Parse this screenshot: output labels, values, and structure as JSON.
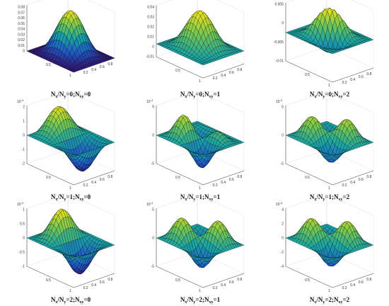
{
  "chart_data": [
    {
      "type": "surface",
      "mode": 0,
      "caption": {
        "pre": "N",
        "s1": "x",
        "mid": "/N",
        "s2": "y",
        "post": "=0;N",
        "s3": "xy",
        "tail": "=0"
      },
      "z_exponent": "",
      "zticks": [
        "0.08",
        "0.07",
        "0.06",
        "0.05",
        "0.04",
        "0.03",
        "0.02",
        "0.01",
        "0"
      ],
      "xticks": [
        "0.5",
        "1"
      ],
      "yticks": [
        "0.2",
        "0.4",
        "0.6",
        "0.8"
      ]
    },
    {
      "type": "surface",
      "mode": 1,
      "caption": {
        "pre": "N",
        "s1": "x",
        "mid": "/N",
        "s2": "y",
        "post": "=0;N",
        "s3": "xy",
        "tail": "=1"
      },
      "z_exponent": "",
      "zticks": [
        "0.04",
        "0.03",
        "0.02",
        "0.01",
        "0",
        "-0.01"
      ],
      "xticks": [
        "0.5",
        "1"
      ],
      "yticks": [
        "0.2",
        "0.4",
        "0.6",
        "0.8"
      ]
    },
    {
      "type": "surface",
      "mode": 2,
      "caption": {
        "pre": "N",
        "s1": "x",
        "mid": "/N",
        "s2": "y",
        "post": "=0;N",
        "s3": "xy",
        "tail": "=2"
      },
      "z_exponent": "",
      "zticks": [
        "0.005",
        "0",
        "-0.005",
        "-0.01"
      ],
      "xticks": [
        "0.5",
        "1"
      ],
      "yticks": [
        "0.2",
        "0.4",
        "0.6",
        "0.8"
      ]
    },
    {
      "type": "surface",
      "mode": 3,
      "caption": {
        "pre": "N",
        "s1": "x",
        "mid": "/N",
        "s2": "y",
        "post": "=1;N",
        "s3": "xy",
        "tail": "=0"
      },
      "z_exponent": "10",
      "z_power": "-4",
      "zticks": [
        "2",
        "1",
        "0",
        "-1",
        "-2"
      ],
      "xticks": [
        "0.5",
        "1"
      ],
      "yticks": [
        "0.2",
        "0.4",
        "0.6",
        "0.8"
      ]
    },
    {
      "type": "surface",
      "mode": 4,
      "caption": {
        "pre": "N",
        "s1": "x",
        "mid": "/N",
        "s2": "y",
        "post": "=1;N",
        "s3": "xy",
        "tail": "=1"
      },
      "z_exponent": "10",
      "z_power": "-3",
      "zticks": [
        "5",
        "0",
        "-5"
      ],
      "xticks": [
        "0.5",
        "1"
      ],
      "yticks": [
        "0.2",
        "0.4",
        "0.6",
        "0.8"
      ]
    },
    {
      "type": "surface",
      "mode": 5,
      "caption": {
        "pre": "N",
        "s1": "x",
        "mid": "/N",
        "s2": "y",
        "post": "=1;N",
        "s3": "xy",
        "tail": "=2"
      },
      "z_exponent": "10",
      "z_power": "-3",
      "zticks": [
        "5",
        "0",
        "-5"
      ],
      "xticks": [
        "0.5",
        "1"
      ],
      "yticks": [
        "0.2",
        "0.4",
        "0.6",
        "0.8"
      ]
    },
    {
      "type": "surface",
      "mode": 6,
      "caption": {
        "pre": "N",
        "s1": "x",
        "mid": "/N",
        "s2": "y",
        "post": "=2;N",
        "s3": "xy",
        "tail": "=0"
      },
      "z_exponent": "10",
      "z_power": "-3",
      "zticks": [
        "1",
        "0.5",
        "0",
        "-0.5",
        "-1"
      ],
      "xticks": [
        "0.5",
        "1"
      ],
      "yticks": [
        "0.2",
        "0.4",
        "0.6",
        "0.8"
      ]
    },
    {
      "type": "surface",
      "mode": 7,
      "caption": {
        "pre": "N",
        "s1": "x",
        "mid": "/N",
        "s2": "y",
        "post": "=2;N",
        "s3": "xy",
        "tail": "=1"
      },
      "z_exponent": "10",
      "z_power": "-3",
      "zticks": [
        "5",
        "0",
        "-5"
      ],
      "xticks": [
        "0.5",
        "1"
      ],
      "yticks": [
        "0.2",
        "0.4",
        "0.6",
        "0.8"
      ]
    },
    {
      "type": "surface",
      "mode": 8,
      "caption": {
        "pre": "N",
        "s1": "x",
        "mid": "/N",
        "s2": "y",
        "post": "=2;N",
        "s3": "xy",
        "tail": "=2"
      },
      "z_exponent": "10",
      "z_power": "-3",
      "zticks": [
        "4",
        "2",
        "0",
        "-2",
        "-4"
      ],
      "xticks": [
        "0.5",
        "1"
      ],
      "yticks": [
        "0.2",
        "0.4",
        "0.6",
        "0.8"
      ]
    }
  ],
  "colors": {
    "low": "#2a1a7a",
    "mid": "#1fa3a0",
    "high": "#f3e31a",
    "mesh": "#000000"
  }
}
